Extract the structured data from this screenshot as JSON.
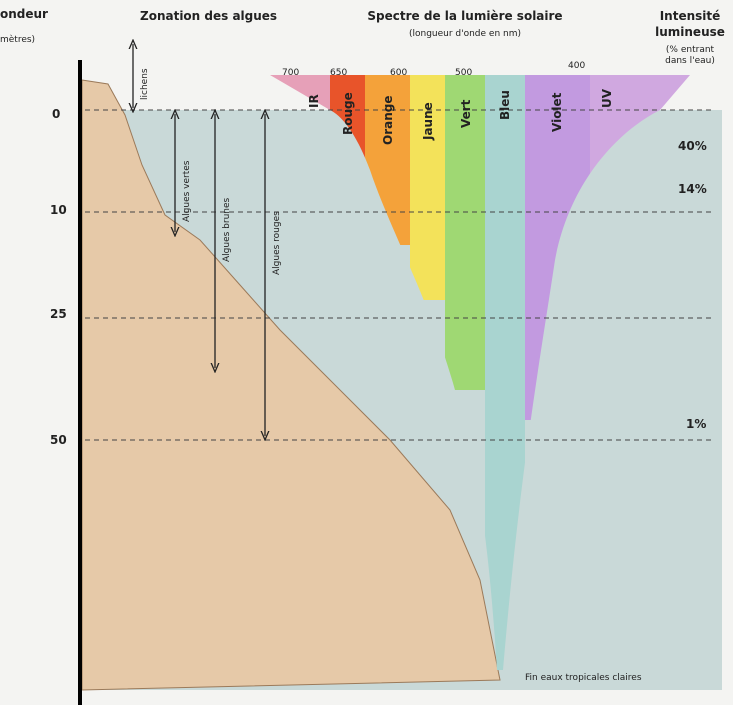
{
  "header": {
    "depth_title_top": "ondeur",
    "depth_title_bottom": "mètres)",
    "zonation_title": "Zonation des algues",
    "spectrum_title": "Spectre de la lumière solaire",
    "spectrum_subtitle": "(longueur d'onde en nm)",
    "intensity_title_1": "Intensité",
    "intensity_title_2": "lumineuse",
    "intensity_note_1": "(% entrant",
    "intensity_note_2": "dans l'eau)"
  },
  "wavelengths": [
    "700",
    "650",
    "600",
    "500",
    "400"
  ],
  "bands": [
    "IR",
    "Rouge",
    "Orange",
    "Jaune",
    "Vert",
    "Bleu",
    "Violet",
    "UV"
  ],
  "depths": [
    "0",
    "10",
    "25",
    "50"
  ],
  "zones": [
    "lichens",
    "Algues vertes",
    "Algues brunes",
    "Algues rouges"
  ],
  "intensities": [
    "40%",
    "14%",
    "1%"
  ],
  "footer": "Fin eaux tropicales claires"
}
